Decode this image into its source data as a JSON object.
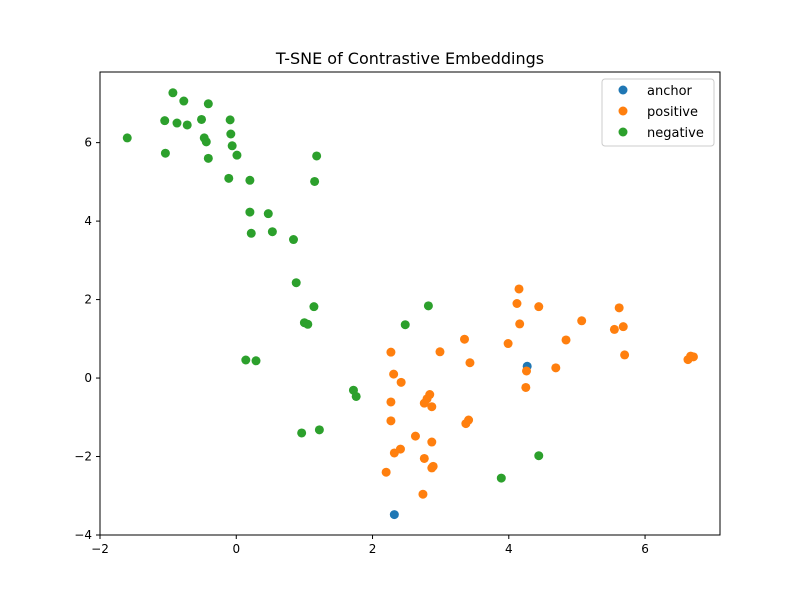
{
  "chart_data": {
    "type": "scatter",
    "title": "T-SNE of Contrastive Embeddings",
    "xlabel": "",
    "ylabel": "",
    "xlim": [
      -2,
      7.1
    ],
    "ylim": [
      -4,
      7.8
    ],
    "xticks": [
      -2,
      0,
      2,
      4,
      6
    ],
    "yticks": [
      -4,
      -2,
      0,
      2,
      4,
      6
    ],
    "grid": false,
    "legend_position": "top-right",
    "series": [
      {
        "name": "anchor",
        "color": "#1f77b4",
        "points": [
          [
            4.27,
            0.3
          ],
          [
            2.32,
            -3.48
          ]
        ]
      },
      {
        "name": "positive",
        "color": "#ff7f0e",
        "points": [
          [
            4.15,
            2.27
          ],
          [
            4.12,
            1.9
          ],
          [
            4.44,
            1.82
          ],
          [
            4.16,
            1.38
          ],
          [
            5.07,
            1.46
          ],
          [
            5.62,
            1.79
          ],
          [
            5.55,
            1.24
          ],
          [
            5.68,
            1.31
          ],
          [
            4.84,
            0.97
          ],
          [
            3.99,
            0.88
          ],
          [
            3.35,
            0.99
          ],
          [
            2.27,
            0.66
          ],
          [
            2.99,
            0.67
          ],
          [
            3.43,
            0.39
          ],
          [
            5.7,
            0.59
          ],
          [
            6.63,
            0.47
          ],
          [
            6.67,
            0.56
          ],
          [
            6.71,
            0.54
          ],
          [
            4.69,
            0.26
          ],
          [
            4.26,
            0.18
          ],
          [
            2.31,
            0.1
          ],
          [
            2.42,
            -0.11
          ],
          [
            4.25,
            -0.24
          ],
          [
            2.84,
            -0.42
          ],
          [
            2.8,
            -0.53
          ],
          [
            2.76,
            -0.64
          ],
          [
            2.27,
            -0.61
          ],
          [
            2.87,
            -0.73
          ],
          [
            2.27,
            -1.09
          ],
          [
            3.41,
            -1.07
          ],
          [
            3.37,
            -1.16
          ],
          [
            2.63,
            -1.48
          ],
          [
            2.87,
            -1.63
          ],
          [
            2.41,
            -1.81
          ],
          [
            2.32,
            -1.91
          ],
          [
            2.76,
            -2.05
          ],
          [
            2.89,
            -2.25
          ],
          [
            2.87,
            -2.29
          ],
          [
            2.2,
            -2.4
          ],
          [
            2.74,
            -2.96
          ]
        ]
      },
      {
        "name": "negative",
        "color": "#2ca02c",
        "points": [
          [
            -0.93,
            7.27
          ],
          [
            -0.77,
            7.06
          ],
          [
            -0.41,
            6.99
          ],
          [
            -1.05,
            6.56
          ],
          [
            -0.87,
            6.5
          ],
          [
            -0.72,
            6.45
          ],
          [
            -0.51,
            6.59
          ],
          [
            -0.09,
            6.58
          ],
          [
            -1.6,
            6.12
          ],
          [
            -0.47,
            6.12
          ],
          [
            -0.08,
            6.22
          ],
          [
            -0.44,
            6.02
          ],
          [
            -0.06,
            5.92
          ],
          [
            -1.04,
            5.73
          ],
          [
            0.01,
            5.68
          ],
          [
            -0.41,
            5.6
          ],
          [
            1.18,
            5.66
          ],
          [
            -0.11,
            5.09
          ],
          [
            0.2,
            5.04
          ],
          [
            1.15,
            5.01
          ],
          [
            0.2,
            4.23
          ],
          [
            0.47,
            4.19
          ],
          [
            0.53,
            3.73
          ],
          [
            0.22,
            3.69
          ],
          [
            0.84,
            3.53
          ],
          [
            0.88,
            2.43
          ],
          [
            2.82,
            1.84
          ],
          [
            1.14,
            1.82
          ],
          [
            2.48,
            1.36
          ],
          [
            1.0,
            1.41
          ],
          [
            1.05,
            1.37
          ],
          [
            0.14,
            0.46
          ],
          [
            0.29,
            0.44
          ],
          [
            1.72,
            -0.31
          ],
          [
            1.76,
            -0.47
          ],
          [
            0.96,
            -1.4
          ],
          [
            1.22,
            -1.32
          ],
          [
            4.44,
            -1.98
          ],
          [
            3.89,
            -2.55
          ]
        ]
      }
    ]
  }
}
